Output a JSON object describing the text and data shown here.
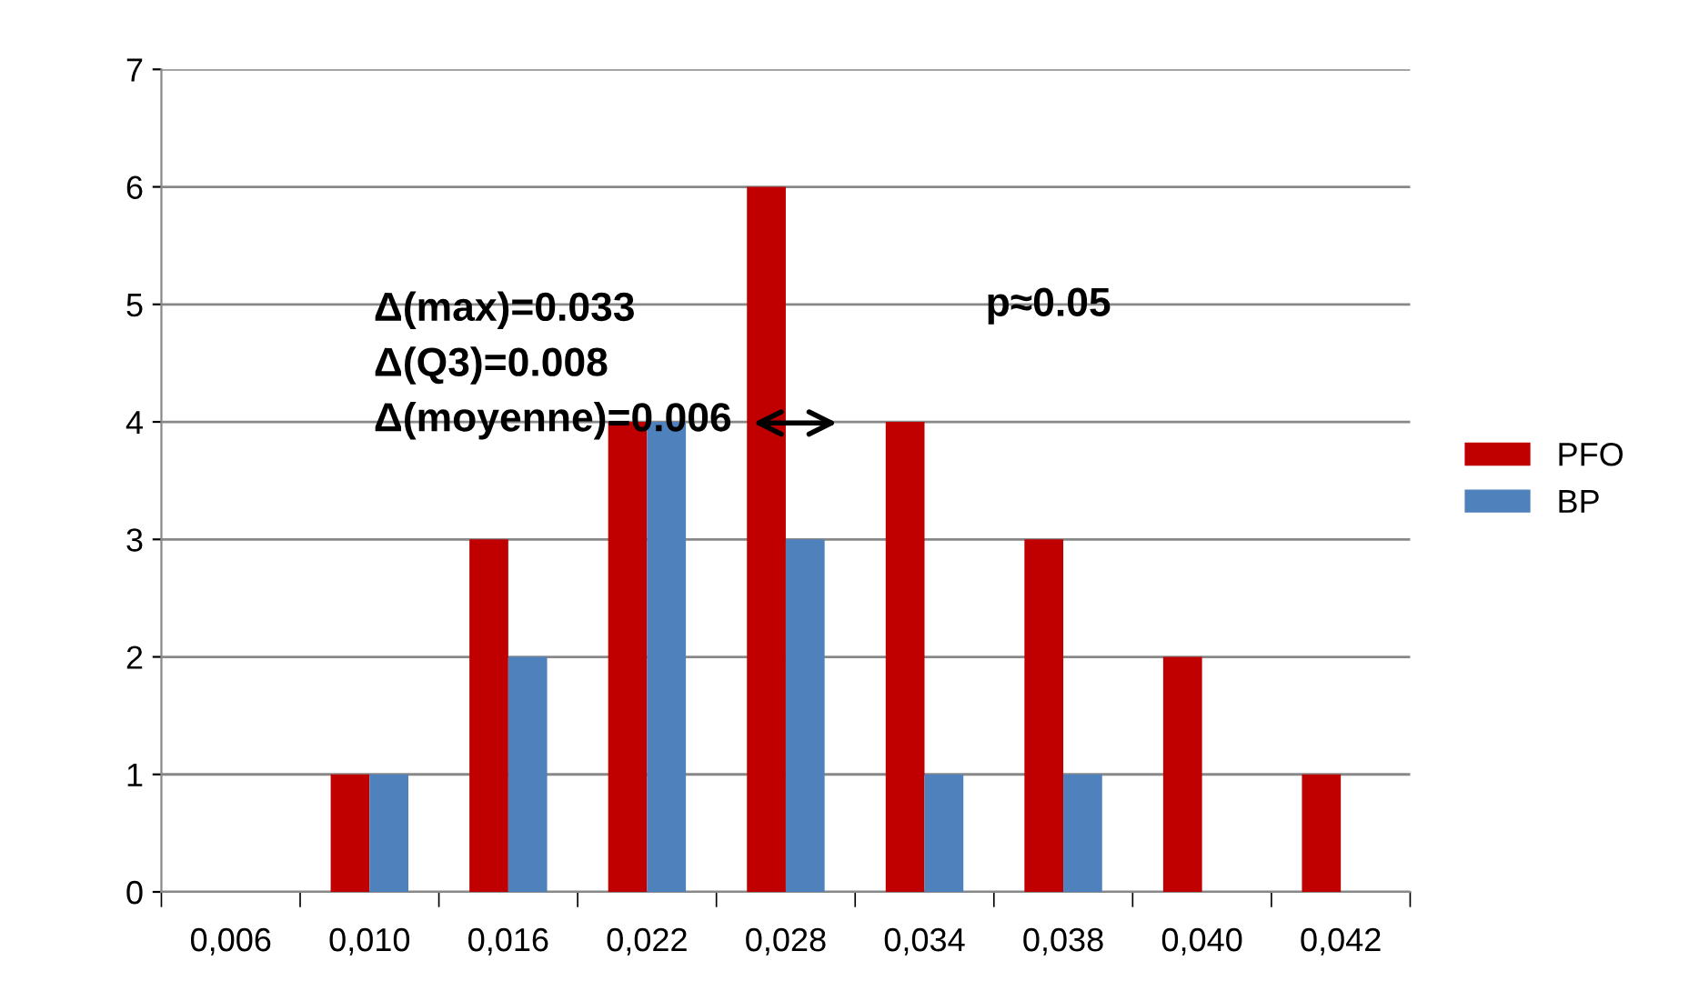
{
  "chart_data": {
    "type": "bar",
    "categories": [
      "0,006",
      "0,010",
      "0,016",
      "0,022",
      "0,028",
      "0,034",
      "0,038",
      "0,040",
      "0,042"
    ],
    "series": [
      {
        "name": "PFO",
        "color": "#c00000",
        "values": [
          0,
          1,
          3,
          4,
          6,
          4,
          3,
          2,
          1
        ]
      },
      {
        "name": "BP",
        "color": "#4f81bd",
        "values": [
          0,
          1,
          2,
          4,
          3,
          1,
          1,
          0,
          0
        ]
      }
    ],
    "ylim": [
      0,
      7
    ],
    "yticks": [
      0,
      1,
      2,
      3,
      4,
      5,
      6,
      7
    ],
    "grid": "y",
    "legend": "right",
    "annotations": [
      "Δ(max)=0.033\nΔ(Q3)=0.008\nΔ(moyenne)=0.006",
      "p≈0.05"
    ]
  }
}
